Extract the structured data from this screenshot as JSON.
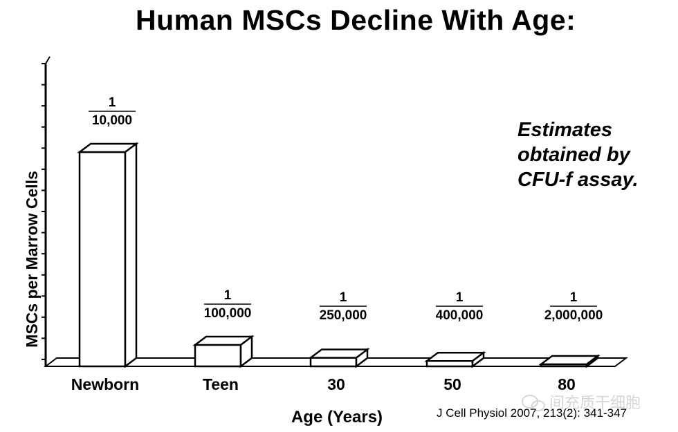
{
  "chart_data": {
    "type": "bar",
    "title": "Human MSCs Decline With Age:",
    "xlabel": "Age (Years)",
    "ylabel": "MSCs per Marrow Cells",
    "categories": [
      "Newborn",
      "Teen",
      "30",
      "50",
      "80"
    ],
    "values": [
      0.0001,
      1e-05,
      4e-06,
      2.5e-06,
      5e-07
    ],
    "data_labels": [
      {
        "numerator": "1",
        "denominator": "10,000"
      },
      {
        "numerator": "1",
        "denominator": "100,000"
      },
      {
        "numerator": "1",
        "denominator": "250,000"
      },
      {
        "numerator": "1",
        "denominator": "400,000"
      },
      {
        "numerator": "1",
        "denominator": "2,000,000"
      }
    ],
    "annotation": [
      "Estimates",
      "obtained by",
      "CFU-f assay."
    ],
    "style": "3d-outlined",
    "grid": false,
    "legend": "none"
  },
  "citation": "J Cell Physiol 2007, 213(2): 341-347",
  "watermark": "间充质干细胞"
}
